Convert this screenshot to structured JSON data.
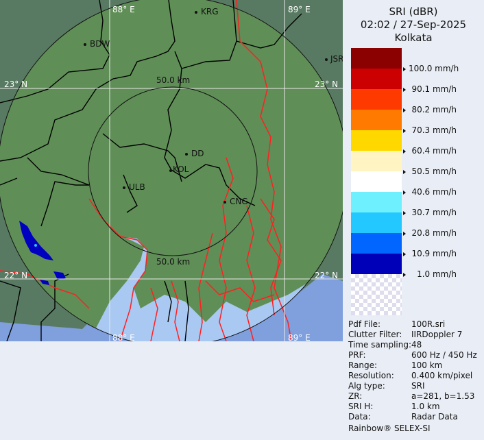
{
  "header": {
    "product": "SRI (dBR)",
    "datetime": "02:02 / 27-Sep-2025",
    "site": "Kolkata"
  },
  "legend": {
    "unit": "mm/h",
    "bands": [
      {
        "color": "#8b0000"
      },
      {
        "color": "#cc0000",
        "label": "100.0 mm/h"
      },
      {
        "color": "#ff3a00",
        "label": "90.1 mm/h"
      },
      {
        "color": "#ff7a00",
        "label": "80.2 mm/h"
      },
      {
        "color": "#ffd800",
        "label": "70.3 mm/h"
      },
      {
        "color": "#fff4c2",
        "label": "60.4 mm/h"
      },
      {
        "color": "#ffffff",
        "label": "50.5 mm/h"
      },
      {
        "color": "#6ff0ff",
        "label": "40.6 mm/h"
      },
      {
        "color": "#22c8ff",
        "label": "30.7 mm/h"
      },
      {
        "color": "#0066ff",
        "label": "20.8 mm/h"
      },
      {
        "color": "#0000b8",
        "label": "10.9 mm/h"
      }
    ],
    "bottom_label": "1.0 mm/h"
  },
  "info": [
    {
      "key": "Pdf File:",
      "value": "100R.sri"
    },
    {
      "key": "Clutter Filter:",
      "value": "IIRDoppler 7"
    },
    {
      "key": "Time sampling:",
      "value": "48"
    },
    {
      "key": "PRF:",
      "value": "600 Hz / 450 Hz"
    },
    {
      "key": "Range:",
      "value": "100 km"
    },
    {
      "key": "Resolution:",
      "value": "0.400 km/pixel"
    },
    {
      "key": "Alg type:",
      "value": "SRI"
    },
    {
      "key": "ZR:",
      "value": "a=281, b=1.53"
    },
    {
      "key": "SRI H:",
      "value": "1.0 km"
    },
    {
      "key": "Data:",
      "value": "Radar Data"
    }
  ],
  "footer": "Rainbow® SELEX-SI",
  "map": {
    "grid_labels": {
      "lon_88_top": "88° E",
      "lon_89_top": "89° E",
      "lon_88_bottom": "88° E",
      "lon_89_bottom": "89° E",
      "lat_23_left": "23° N",
      "lat_23_right": "23° N",
      "lat_22_left": "22° N",
      "lat_22_right": "22° N"
    },
    "range_labels": {
      "inner_top": "50.0 km",
      "inner_bottom": "50.0 km"
    },
    "cities": [
      "KRG",
      "BDW",
      "JSR",
      "DD",
      "KOL",
      "ULB",
      "CNG"
    ],
    "colors": {
      "land_in_range": "#5f8e57",
      "land_out_range": "#597a62",
      "sea_in_range": "#a9c8f2",
      "sea_out_range": "#7f9fdd",
      "rivers": "#ff2020",
      "borders": "#000000"
    }
  }
}
